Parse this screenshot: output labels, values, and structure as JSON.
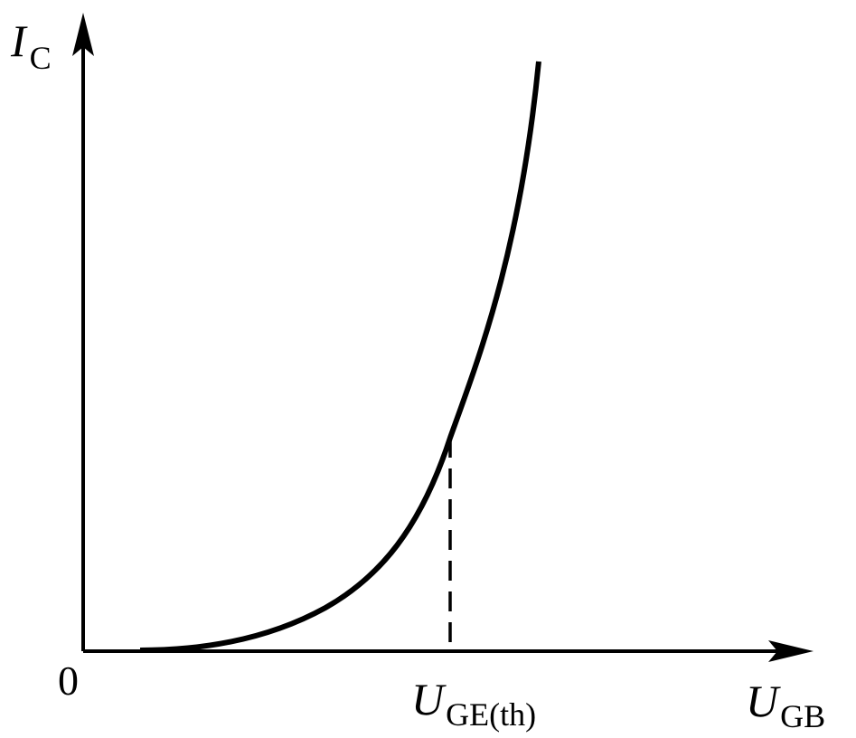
{
  "y_axis_label": {
    "symbol": "I",
    "subscript": "C"
  },
  "origin_label": "0",
  "threshold_label": {
    "symbol": "U",
    "subscript": "GE(th)"
  },
  "x_axis_label": {
    "symbol": "U",
    "subscript": "GB"
  }
}
